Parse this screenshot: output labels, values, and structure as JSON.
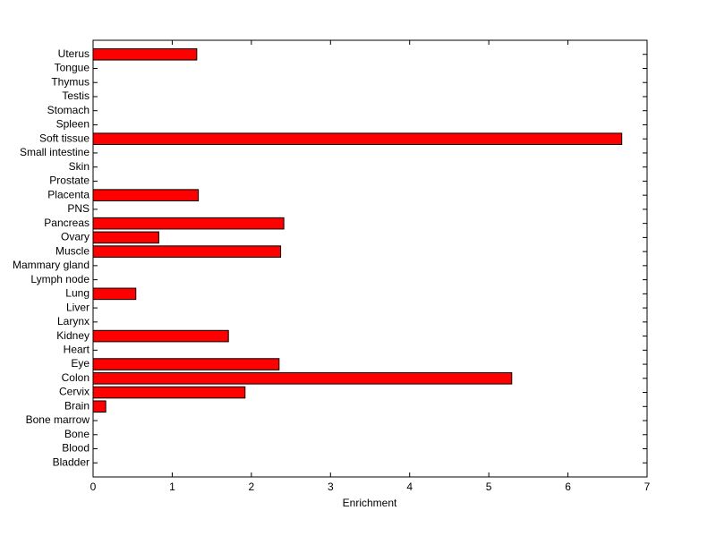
{
  "chart_data": {
    "type": "barh",
    "xlabel": "Enrichment",
    "categories": [
      "Bladder",
      "Blood",
      "Bone",
      "Bone marrow",
      "Brain",
      "Cervix",
      "Colon",
      "Eye",
      "Heart",
      "Kidney",
      "Larynx",
      "Liver",
      "Lung",
      "Lymph node",
      "Mammary gland",
      "Muscle",
      "Ovary",
      "Pancreas",
      "PNS",
      "Placenta",
      "Prostate",
      "Skin",
      "Small intestine",
      "Soft tissue",
      "Spleen",
      "Stomach",
      "Testis",
      "Thymus",
      "Tongue",
      "Uterus"
    ],
    "values": [
      0,
      0,
      0,
      0,
      0.16,
      1.92,
      5.29,
      2.35,
      0,
      1.71,
      0,
      0,
      0.54,
      0,
      0,
      2.37,
      0.83,
      2.41,
      0,
      1.33,
      0,
      0,
      0,
      6.68,
      0,
      0,
      0,
      0,
      0,
      1.31
    ],
    "color": "#ff0000",
    "xlim": [
      0,
      7
    ],
    "xticks": [
      0,
      1,
      2,
      3,
      4,
      5,
      6,
      7
    ]
  }
}
